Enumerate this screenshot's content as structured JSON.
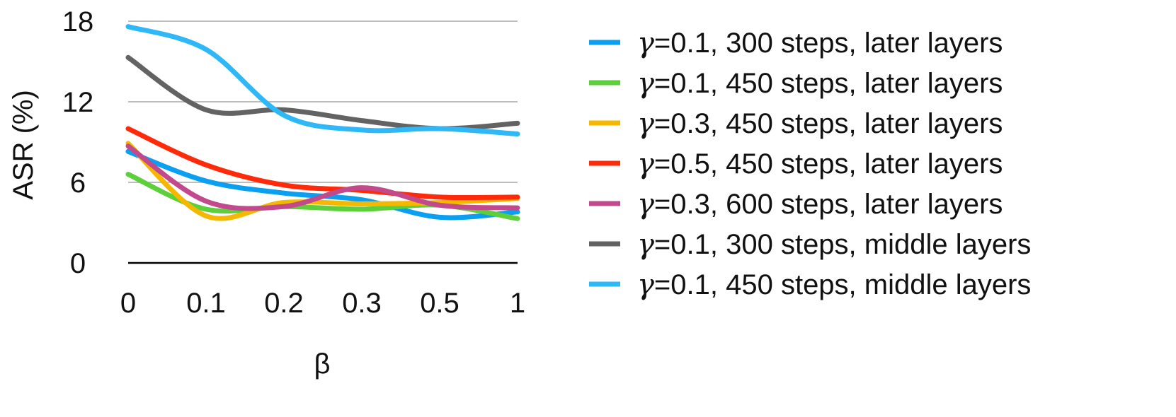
{
  "chart_data": {
    "type": "line",
    "x_categories": [
      "0",
      "0.1",
      "0.2",
      "0.3",
      "0.5",
      "1"
    ],
    "xlabel": "β",
    "ylabel": "ASR (%)",
    "ylim": [
      0,
      18
    ],
    "yticks": [
      0,
      6,
      12,
      18
    ],
    "grid": true,
    "legend_position": "right",
    "series": [
      {
        "name_var": "γ",
        "name_rest": "=0.1, 300 steps, later layers",
        "color": "#0A9FF0",
        "values": [
          8.3,
          6.1,
          5.2,
          4.7,
          3.4,
          3.8
        ]
      },
      {
        "name_var": "γ",
        "name_rest": "=0.1, 450 steps, later layers",
        "color": "#5CCF3A",
        "values": [
          6.6,
          4.0,
          4.2,
          4.0,
          4.3,
          3.3
        ]
      },
      {
        "name_var": "γ",
        "name_rest": "=0.3, 450 steps, later layers",
        "color": "#F5B800",
        "values": [
          8.9,
          3.5,
          4.5,
          4.4,
          4.5,
          4.8
        ]
      },
      {
        "name_var": "γ",
        "name_rest": "=0.5, 450 steps, later layers",
        "color": "#FF2A0A",
        "values": [
          10.0,
          7.3,
          5.8,
          5.4,
          4.9,
          4.9
        ]
      },
      {
        "name_var": "γ",
        "name_rest": "=0.3, 600 steps, later layers",
        "color": "#C24A8C",
        "values": [
          8.7,
          4.6,
          4.2,
          5.6,
          4.3,
          4.1
        ]
      },
      {
        "name_var": "γ",
        "name_rest": "=0.1, 300 steps, middle layers",
        "color": "#636363",
        "values": [
          15.3,
          11.4,
          11.4,
          10.6,
          10.0,
          10.4
        ]
      },
      {
        "name_var": "γ",
        "name_rest": "=0.1, 450 steps, middle layers",
        "color": "#2EB8F7",
        "values": [
          17.6,
          15.9,
          11.0,
          9.9,
          10.0,
          9.6
        ]
      }
    ]
  }
}
